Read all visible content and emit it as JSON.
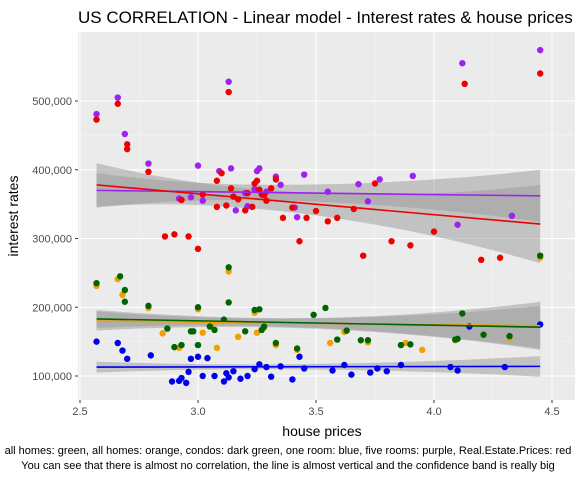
{
  "chart_data": {
    "type": "scatter",
    "title": "US CORRELATION - Linear model - Interest rates & house prices",
    "xlabel": "house prices",
    "ylabel": "interest rates",
    "xlim": [
      2.5,
      4.5
    ],
    "ylim": [
      65000,
      590000
    ],
    "x_ticks": [
      2.5,
      3.0,
      3.5,
      4.0,
      4.5
    ],
    "x_tick_labels": [
      "2.5",
      "3.0",
      "3.5",
      "4.0",
      "4.5"
    ],
    "y_ticks": [
      100000,
      200000,
      300000,
      400000,
      500000
    ],
    "y_tick_labels": [
      "100,000",
      "200,000",
      "300,000",
      "400,000",
      "500,000"
    ],
    "grid": true,
    "caption_lines": [
      "all homes: green, all homes: orange, condos: dark green, one room: blue, five rooms: purple, Real.Estate.Prices: red",
      "You can see that there is almost no correlation, the line is almost vertical and the confidence band is really big"
    ],
    "series": [
      {
        "color": "#F0A000",
        "points": [
          [
            2.57,
            231000
          ],
          [
            2.66,
            241000
          ],
          [
            2.68,
            218000
          ],
          [
            2.79,
            199000
          ],
          [
            2.85,
            162000
          ],
          [
            2.92,
            141000
          ],
          [
            3.0,
            197000
          ],
          [
            3.02,
            163000
          ],
          [
            3.06,
            175000
          ],
          [
            3.08,
            141000
          ],
          [
            3.13,
            252000
          ],
          [
            3.17,
            157000
          ],
          [
            3.24,
            192000
          ],
          [
            3.25,
            163000
          ],
          [
            3.28,
            170000
          ],
          [
            3.33,
            145000
          ],
          [
            3.42,
            138000
          ],
          [
            3.56,
            148000
          ],
          [
            3.62,
            164000
          ],
          [
            3.72,
            149000
          ],
          [
            3.88,
            148000
          ],
          [
            3.95,
            138000
          ],
          [
            4.09,
            152000
          ],
          [
            4.32,
            155000
          ],
          [
            4.45,
            272000
          ]
        ]
      },
      {
        "color": "#006400",
        "points": [
          [
            2.57,
            235000
          ],
          [
            2.67,
            245000
          ],
          [
            2.69,
            225000
          ],
          [
            2.69,
            208000
          ],
          [
            2.79,
            202000
          ],
          [
            2.87,
            169000
          ],
          [
            2.9,
            142000
          ],
          [
            2.93,
            145000
          ],
          [
            2.97,
            165000
          ],
          [
            2.98,
            165000
          ],
          [
            3.0,
            200000
          ],
          [
            3.0,
            145000
          ],
          [
            3.05,
            172000
          ],
          [
            3.07,
            167000
          ],
          [
            3.11,
            182000
          ],
          [
            3.13,
            258000
          ],
          [
            3.13,
            207000
          ],
          [
            3.2,
            165000
          ],
          [
            3.24,
            196000
          ],
          [
            3.26,
            197000
          ],
          [
            3.27,
            167000
          ],
          [
            3.28,
            172000
          ],
          [
            3.33,
            148000
          ],
          [
            3.42,
            140000
          ],
          [
            3.49,
            189000
          ],
          [
            3.54,
            199000
          ],
          [
            3.59,
            153000
          ],
          [
            3.63,
            166000
          ],
          [
            3.69,
            152000
          ],
          [
            3.72,
            152000
          ],
          [
            3.86,
            145000
          ],
          [
            3.9,
            146000
          ],
          [
            4.09,
            153000
          ],
          [
            4.1,
            154000
          ],
          [
            4.12,
            191000
          ],
          [
            4.21,
            160000
          ],
          [
            4.32,
            158000
          ],
          [
            4.45,
            275000
          ]
        ]
      },
      {
        "color": "#0000EE",
        "points": [
          [
            2.57,
            150000
          ],
          [
            2.66,
            148000
          ],
          [
            2.68,
            137000
          ],
          [
            2.7,
            125000
          ],
          [
            2.8,
            130000
          ],
          [
            2.89,
            92000
          ],
          [
            2.92,
            93000
          ],
          [
            2.93,
            97000
          ],
          [
            2.95,
            90000
          ],
          [
            2.96,
            106000
          ],
          [
            2.97,
            125000
          ],
          [
            3.0,
            128000
          ],
          [
            3.02,
            100000
          ],
          [
            3.04,
            126000
          ],
          [
            3.07,
            100000
          ],
          [
            3.11,
            92000
          ],
          [
            3.12,
            104000
          ],
          [
            3.13,
            98000
          ],
          [
            3.15,
            107000
          ],
          [
            3.18,
            96000
          ],
          [
            3.21,
            100000
          ],
          [
            3.24,
            110000
          ],
          [
            3.26,
            117000
          ],
          [
            3.29,
            113000
          ],
          [
            3.31,
            99000
          ],
          [
            3.35,
            114000
          ],
          [
            3.4,
            95000
          ],
          [
            3.43,
            128000
          ],
          [
            3.45,
            111000
          ],
          [
            3.57,
            108000
          ],
          [
            3.62,
            116000
          ],
          [
            3.65,
            102000
          ],
          [
            3.73,
            105000
          ],
          [
            3.76,
            111000
          ],
          [
            3.8,
            107000
          ],
          [
            3.86,
            116000
          ],
          [
            4.07,
            113000
          ],
          [
            4.1,
            108000
          ],
          [
            4.15,
            172000
          ],
          [
            4.3,
            113000
          ],
          [
            4.45,
            175000
          ]
        ]
      },
      {
        "color": "#A020F0",
        "points": [
          [
            2.57,
            481000
          ],
          [
            2.66,
            505000
          ],
          [
            2.69,
            452000
          ],
          [
            2.79,
            409000
          ],
          [
            2.92,
            358000
          ],
          [
            2.97,
            360000
          ],
          [
            3.0,
            406000
          ],
          [
            3.02,
            355000
          ],
          [
            3.09,
            398000
          ],
          [
            3.13,
            528000
          ],
          [
            3.14,
            402000
          ],
          [
            3.16,
            341000
          ],
          [
            3.2,
            366000
          ],
          [
            3.21,
            347000
          ],
          [
            3.24,
            372000
          ],
          [
            3.25,
            398000
          ],
          [
            3.26,
            402000
          ],
          [
            3.29,
            368000
          ],
          [
            3.33,
            390000
          ],
          [
            3.35,
            378000
          ],
          [
            3.41,
            345000
          ],
          [
            3.42,
            331000
          ],
          [
            3.45,
            393000
          ],
          [
            3.55,
            368000
          ],
          [
            3.68,
            379000
          ],
          [
            3.72,
            354000
          ],
          [
            3.77,
            386000
          ],
          [
            3.91,
            391000
          ],
          [
            4.1,
            320000
          ],
          [
            4.12,
            555000
          ],
          [
            4.33,
            333000
          ],
          [
            4.45,
            574000
          ]
        ]
      },
      {
        "color": "#EE0000",
        "points": [
          [
            2.57,
            473000
          ],
          [
            2.66,
            496000
          ],
          [
            2.7,
            437000
          ],
          [
            2.7,
            430000
          ],
          [
            2.79,
            397000
          ],
          [
            2.86,
            303000
          ],
          [
            2.9,
            306000
          ],
          [
            2.93,
            356000
          ],
          [
            2.96,
            303000
          ],
          [
            3.0,
            285000
          ],
          [
            3.02,
            364000
          ],
          [
            3.08,
            346000
          ],
          [
            3.08,
            384000
          ],
          [
            3.1,
            395000
          ],
          [
            3.12,
            348000
          ],
          [
            3.13,
            513000
          ],
          [
            3.14,
            373000
          ],
          [
            3.15,
            361000
          ],
          [
            3.17,
            357000
          ],
          [
            3.2,
            341000
          ],
          [
            3.21,
            366000
          ],
          [
            3.23,
            346000
          ],
          [
            3.24,
            380000
          ],
          [
            3.25,
            384000
          ],
          [
            3.26,
            371000
          ],
          [
            3.27,
            364000
          ],
          [
            3.28,
            363000
          ],
          [
            3.29,
            355000
          ],
          [
            3.31,
            373000
          ],
          [
            3.33,
            386000
          ],
          [
            3.36,
            330000
          ],
          [
            3.4,
            345000
          ],
          [
            3.43,
            296000
          ],
          [
            3.46,
            330000
          ],
          [
            3.5,
            340000
          ],
          [
            3.55,
            325000
          ],
          [
            3.59,
            330000
          ],
          [
            3.66,
            343000
          ],
          [
            3.7,
            275000
          ],
          [
            3.75,
            380000
          ],
          [
            3.82,
            296000
          ],
          [
            3.9,
            290000
          ],
          [
            4.0,
            310000
          ],
          [
            4.13,
            525000
          ],
          [
            4.2,
            269000
          ],
          [
            4.28,
            272000
          ],
          [
            4.45,
            540000
          ]
        ]
      }
    ],
    "fits": [
      {
        "color": "#A020F0",
        "x": [
          2.57,
          4.45
        ],
        "y": [
          370000,
          362000
        ],
        "band_upper": [
          395000,
          400000
        ],
        "band_lower": [
          345000,
          324000
        ]
      },
      {
        "color": "#EE0000",
        "x": [
          2.57,
          4.45
        ],
        "y": [
          378000,
          321000
        ],
        "band_upper": [
          409000,
          378000
        ],
        "band_lower": [
          346000,
          264000
        ]
      },
      {
        "color": "#F0A000",
        "x": [
          2.57,
          4.45
        ],
        "y": [
          180000,
          173000
        ],
        "band_upper": [
          194000,
          209000
        ],
        "band_lower": [
          166000,
          139000
        ]
      },
      {
        "color": "#006400",
        "x": [
          2.57,
          4.45
        ],
        "y": [
          183000,
          171000
        ],
        "band_upper": [
          196000,
          202000
        ],
        "band_lower": [
          170000,
          140000
        ]
      },
      {
        "color": "#0000EE",
        "x": [
          2.57,
          4.45
        ],
        "y": [
          113000,
          114000
        ],
        "band_upper": [
          121000,
          129000
        ],
        "band_lower": [
          105000,
          99000
        ]
      }
    ]
  }
}
